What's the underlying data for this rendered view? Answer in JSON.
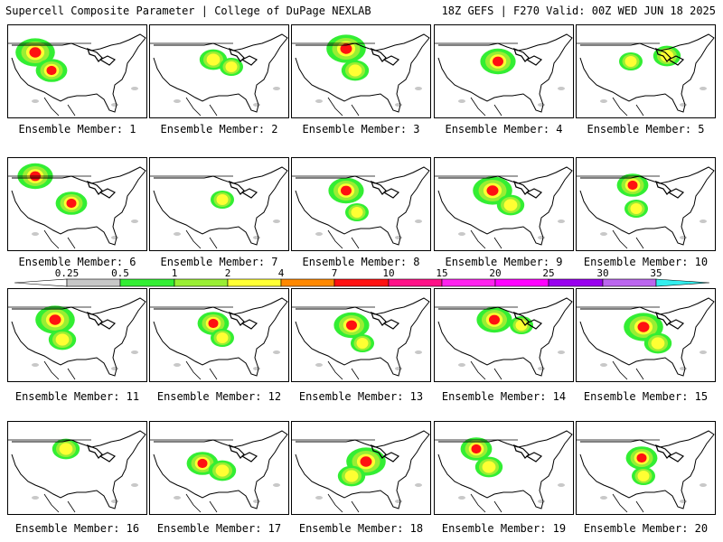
{
  "header": {
    "title_left": "Supercell Composite Parameter | College of DuPage NEXLAB",
    "title_right": "18Z GEFS | F270 Valid: 00Z WED JUN 18 2025"
  },
  "panels": [
    {
      "label": "Ensemble Member: 1"
    },
    {
      "label": "Ensemble Member: 2"
    },
    {
      "label": "Ensemble Member: 3"
    },
    {
      "label": "Ensemble Member: 4"
    },
    {
      "label": "Ensemble Member: 5"
    },
    {
      "label": "Ensemble Member: 6"
    },
    {
      "label": "Ensemble Member: 7"
    },
    {
      "label": "Ensemble Member: 8"
    },
    {
      "label": "Ensemble Member: 9"
    },
    {
      "label": "Ensemble Member: 10"
    },
    {
      "label": "Ensemble Member: 11"
    },
    {
      "label": "Ensemble Member: 12"
    },
    {
      "label": "Ensemble Member: 13"
    },
    {
      "label": "Ensemble Member: 14"
    },
    {
      "label": "Ensemble Member: 15"
    },
    {
      "label": "Ensemble Member: 16"
    },
    {
      "label": "Ensemble Member: 17"
    },
    {
      "label": "Ensemble Member: 18"
    },
    {
      "label": "Ensemble Member: 19"
    },
    {
      "label": "Ensemble Member: 20"
    }
  ],
  "colorbar": {
    "levels": [
      "0.25",
      "0.5",
      "1",
      "2",
      "4",
      "7",
      "10",
      "15",
      "20",
      "25",
      "30",
      "35"
    ],
    "colors": [
      "#ffffff",
      "#c8c8c8",
      "#33ee33",
      "#99ee33",
      "#ffff33",
      "#ff8800",
      "#ff1111",
      "#ff1188",
      "#ff22ee",
      "#ff00ff",
      "#9900ee",
      "#bb66ee",
      "#33eeee"
    ]
  }
}
